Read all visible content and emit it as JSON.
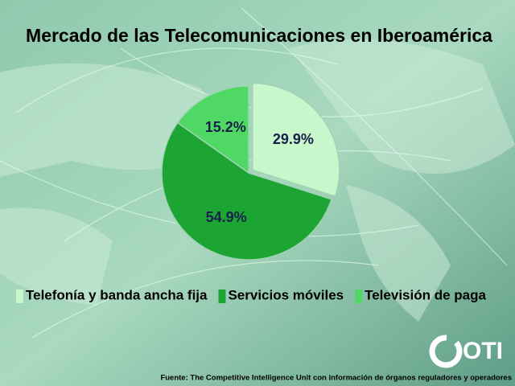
{
  "chart_data": {
    "type": "pie",
    "title": "Mercado de las Telecomunicaciones en Iberoamérica",
    "categories": [
      "Telefonía y banda ancha fija",
      "Servicios móviles",
      "Televisión de paga"
    ],
    "values": [
      29.9,
      54.9,
      15.2
    ],
    "value_labels": [
      "29.9%",
      "54.9%",
      "15.2%"
    ],
    "colors": [
      "#c8f7cb",
      "#1da534",
      "#4fd863"
    ],
    "legend": "bottom",
    "source": "Fuente: The Competitive Intelligence Unit con información de órganos reguladores y operadores",
    "logo": "OTI"
  }
}
